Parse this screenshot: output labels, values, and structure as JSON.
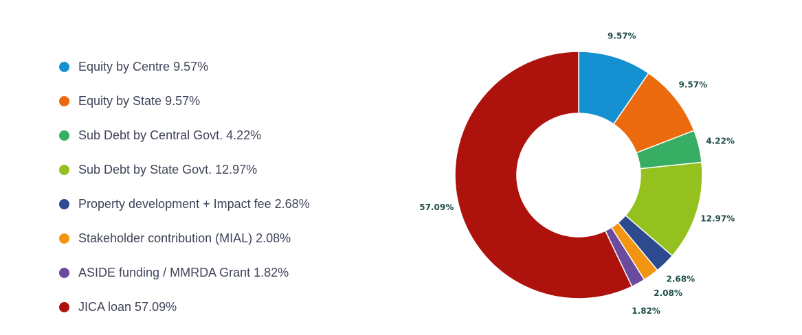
{
  "chart_data": {
    "type": "pie",
    "donut": true,
    "legend_position": "left",
    "slices": [
      {
        "legend": "Equity by Centre 9.57%",
        "value": 9.57,
        "label": "9.57%",
        "color": "#1590d0"
      },
      {
        "legend": "Equity by State 9.57%",
        "value": 9.57,
        "label": "9.57%",
        "color": "#ec6a0e"
      },
      {
        "legend": "Sub Debt by Central Govt. 4.22%",
        "value": 4.22,
        "label": "4.22%",
        "color": "#37ae63"
      },
      {
        "legend": "Sub Debt by State Govt. 12.97%",
        "value": 12.97,
        "label": "12.97%",
        "color": "#95c11e"
      },
      {
        "legend": "Property development + Impact fee 2.68%",
        "value": 2.68,
        "label": "2.68%",
        "color": "#2e4a8f"
      },
      {
        "legend": "Stakeholder contribution (MIAL) 2.08%",
        "value": 2.08,
        "label": "2.08%",
        "color": "#f39412"
      },
      {
        "legend": "ASIDE funding / MMRDA Grant 1.82%",
        "value": 1.82,
        "label": "1.82%",
        "color": "#6b4b9e"
      },
      {
        "legend": "JICA loan 57.09%",
        "value": 57.09,
        "label": "57.09%",
        "color": "#ae120c"
      }
    ]
  }
}
